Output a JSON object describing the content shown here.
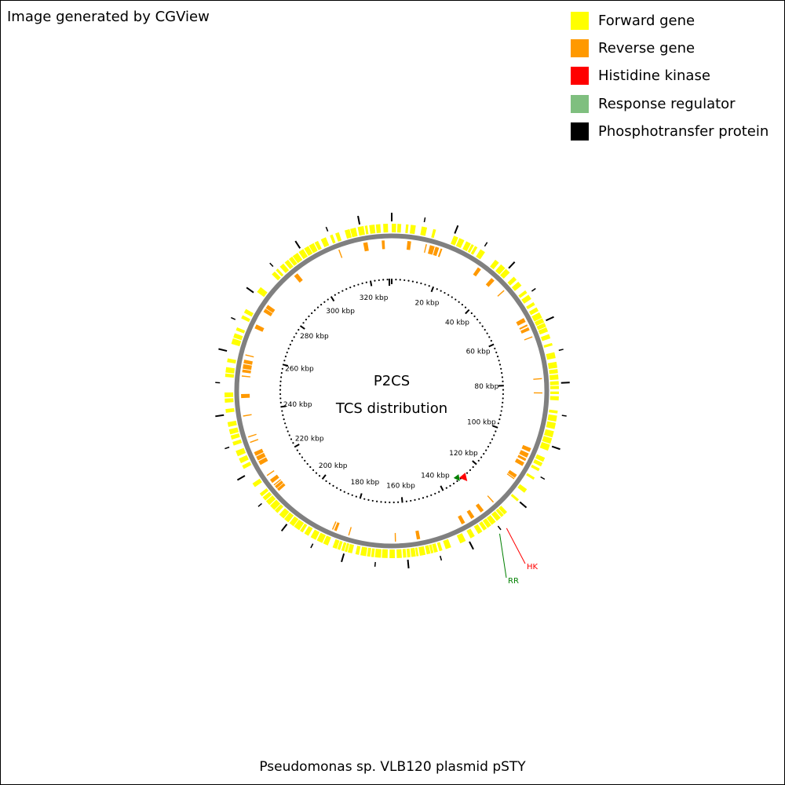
{
  "credit": "Image generated by CGView",
  "title": "Pseudomonas sp. VLB120 plasmid pSTY",
  "center_label": {
    "line1": "P2CS",
    "line2": "TCS distribution"
  },
  "legend": [
    {
      "label": "Forward gene",
      "color": "#ffff00"
    },
    {
      "label": "Reverse gene",
      "color": "#ff9900"
    },
    {
      "label": "Histidine kinase",
      "color": "#ff0000"
    },
    {
      "label": "Response regulator",
      "color": "#7fbf7f"
    },
    {
      "label": "Phosphotransfer protein",
      "color": "#000000"
    }
  ],
  "colors": {
    "forward": "#ffff00",
    "reverse": "#ff9900",
    "histidine_kinase": "#ff0000",
    "response_regulator": "#008000",
    "backbone": "#808080",
    "ticks": "#000000"
  },
  "map": {
    "sequence_length_kbp": 330,
    "tick_label_suffix": "kbp",
    "tick_labels_kbp": [
      20,
      40,
      60,
      80,
      100,
      120,
      140,
      160,
      180,
      200,
      220,
      240,
      260,
      280,
      300,
      320
    ],
    "features": [
      {
        "label": "HK",
        "type": "histidine-kinase",
        "position_kbp": 128.4
      },
      {
        "label": "RR",
        "type": "response-regulator",
        "position_kbp": 131.0
      }
    ],
    "forward_genes_kbp": [
      [
        0.0,
        1.4
      ],
      [
        1.8,
        3.0
      ],
      [
        4.5,
        5.3
      ],
      [
        6.0,
        7.6
      ],
      [
        9.5,
        11.2
      ],
      [
        13.2,
        14.1
      ],
      [
        20.0,
        21.5
      ],
      [
        21.9,
        23.6
      ],
      [
        24.3,
        25.9
      ],
      [
        26.2,
        27.0
      ],
      [
        27.4,
        28.3
      ],
      [
        29.4,
        31.1
      ],
      [
        35.1,
        36.6
      ],
      [
        37.4,
        39.2
      ],
      [
        39.5,
        41.2
      ],
      [
        43.0,
        44.3
      ],
      [
        45.1,
        46.7
      ],
      [
        48.6,
        49.6
      ],
      [
        50.3,
        51.9
      ],
      [
        53.1,
        54.1
      ],
      [
        55.0,
        56.3
      ],
      [
        56.8,
        58.7
      ],
      [
        58.9,
        60.3
      ],
      [
        60.5,
        61.8
      ],
      [
        62.0,
        63.4
      ],
      [
        64.3,
        65.7
      ],
      [
        67.2,
        68.0
      ],
      [
        70.2,
        72.1
      ],
      [
        73.3,
        75.2
      ],
      [
        75.6,
        76.9
      ],
      [
        77.3,
        78.9
      ],
      [
        79.4,
        80.6
      ],
      [
        80.9,
        81.9
      ],
      [
        82.7,
        83.5
      ],
      [
        84.2,
        85.5
      ],
      [
        88.7,
        89.6
      ],
      [
        90.3,
        92.2
      ],
      [
        92.6,
        94.6
      ],
      [
        95.3,
        97.3
      ],
      [
        97.6,
        99.4
      ],
      [
        99.7,
        101.7
      ],
      [
        104.1,
        105.5
      ],
      [
        105.9,
        107.1
      ],
      [
        107.9,
        108.8
      ],
      [
        111.1,
        111.9
      ],
      [
        115.5,
        116.9
      ],
      [
        119.6,
        120.4
      ],
      [
        125.0,
        126.2
      ],
      [
        126.4,
        127.4
      ],
      [
        127.7,
        129.3
      ],
      [
        129.7,
        131.3
      ],
      [
        131.5,
        132.9
      ],
      [
        133.2,
        134.4
      ],
      [
        134.9,
        136.4
      ],
      [
        137.7,
        139.2
      ],
      [
        140.9,
        142.8
      ],
      [
        145.9,
        147.7
      ],
      [
        148.8,
        149.8
      ],
      [
        150.3,
        151.5
      ],
      [
        151.7,
        152.5
      ],
      [
        152.7,
        153.9
      ],
      [
        154.3,
        156.1
      ],
      [
        156.5,
        157.2
      ],
      [
        157.4,
        158.8
      ],
      [
        159.1,
        160.1
      ],
      [
        160.4,
        161.4
      ],
      [
        161.8,
        163.4
      ],
      [
        164.0,
        165.7
      ],
      [
        166.3,
        168.1
      ],
      [
        168.4,
        170.3
      ],
      [
        170.6,
        171.5
      ],
      [
        171.8,
        172.8
      ],
      [
        173.1,
        174.9
      ],
      [
        175.4,
        176.5
      ],
      [
        177.6,
        179.0
      ],
      [
        179.2,
        180.0
      ],
      [
        180.2,
        181.1
      ],
      [
        181.5,
        182.4
      ],
      [
        182.6,
        184.0
      ],
      [
        185.6,
        187.2
      ],
      [
        187.5,
        189.4
      ],
      [
        189.8,
        191.6
      ],
      [
        192.4,
        193.9
      ],
      [
        194.5,
        195.5
      ],
      [
        195.8,
        197.8
      ],
      [
        198.0,
        199.6
      ],
      [
        200.0,
        201.7
      ],
      [
        201.9,
        203.8
      ],
      [
        204.5,
        205.7
      ],
      [
        205.9,
        207.8
      ],
      [
        208.1,
        209.7
      ],
      [
        210.0,
        211.3
      ],
      [
        211.7,
        212.8
      ],
      [
        215.3,
        216.7
      ],
      [
        222.0,
        223.2
      ],
      [
        224.0,
        225.6
      ],
      [
        226.4,
        228.2
      ],
      [
        230.0,
        231.2
      ],
      [
        232.0,
        233.3
      ],
      [
        233.7,
        235.3
      ],
      [
        236.1,
        237.6
      ],
      [
        240.6,
        241.8
      ],
      [
        243.8,
        245.1
      ],
      [
        245.5,
        247.0
      ],
      [
        251.9,
        253.0
      ],
      [
        253.3,
        255.0
      ],
      [
        256.6,
        257.8
      ],
      [
        262.5,
        264.3
      ],
      [
        264.6,
        266.0
      ],
      [
        267.0,
        268.0
      ],
      [
        271.1,
        272.2
      ],
      [
        273.1,
        274.4
      ],
      [
        280.8,
        282.7
      ],
      [
        288.0,
        289.3
      ],
      [
        289.8,
        290.6
      ],
      [
        291.5,
        293.0
      ],
      [
        293.5,
        294.9
      ],
      [
        295.2,
        296.5
      ],
      [
        296.7,
        298.6
      ],
      [
        299.0,
        300.7
      ],
      [
        301.0,
        302.6
      ],
      [
        302.8,
        304.5
      ],
      [
        304.8,
        306.0
      ],
      [
        307.0,
        308.7
      ],
      [
        310.1,
        311.0
      ],
      [
        311.9,
        313.1
      ],
      [
        315.0,
        316.6
      ],
      [
        316.8,
        318.6
      ],
      [
        319.2,
        321.1
      ],
      [
        321.5,
        322.3
      ],
      [
        322.9,
        324.6
      ],
      [
        325.0,
        326.4
      ],
      [
        327.3,
        328.8
      ]
    ],
    "reverse_genes_kbp": [
      [
        5.5,
        6.8
      ],
      [
        12.0,
        12.3
      ],
      [
        13.5,
        15.2
      ],
      [
        15.5,
        16.8
      ],
      [
        17.4,
        18.0
      ],
      [
        32.0,
        33.3
      ],
      [
        38.0,
        39.4
      ],
      [
        44.0,
        44.3
      ],
      [
        56.0,
        57.5
      ],
      [
        58.5,
        59.1
      ],
      [
        59.6,
        60.7
      ],
      [
        63.0,
        63.3
      ],
      [
        78.0,
        78.3
      ],
      [
        83.0,
        83.3
      ],
      [
        103.0,
        104.4
      ],
      [
        105.0,
        106.6
      ],
      [
        107.0,
        107.9
      ],
      [
        108.5,
        109.9
      ],
      [
        113.5,
        114.8
      ],
      [
        115.0,
        115.3
      ],
      [
        125.9,
        126.2
      ],
      [
        130.5,
        131.8
      ],
      [
        134.5,
        135.8
      ],
      [
        138.3,
        139.6
      ],
      [
        155.0,
        156.2
      ],
      [
        163.5,
        163.8
      ],
      [
        180.0,
        180.3
      ],
      [
        184.7,
        185.6
      ],
      [
        186.0,
        186.3
      ],
      [
        209.4,
        210.4
      ],
      [
        210.6,
        211.6
      ],
      [
        211.9,
        212.2
      ],
      [
        213.0,
        214.4
      ],
      [
        216.0,
        216.3
      ],
      [
        220.5,
        222.0
      ],
      [
        222.3,
        223.8
      ],
      [
        224.1,
        225.5
      ],
      [
        229.0,
        229.3
      ],
      [
        231.0,
        231.3
      ],
      [
        238.5,
        238.8
      ],
      [
        245.0,
        246.4
      ],
      [
        252.5,
        252.8
      ],
      [
        254.0,
        255.0
      ],
      [
        255.3,
        256.9
      ],
      [
        257.2,
        258.5
      ],
      [
        260.0,
        260.3
      ],
      [
        270.0,
        271.5
      ],
      [
        276.5,
        277.8
      ],
      [
        278.0,
        279.4
      ],
      [
        293.0,
        294.5
      ],
      [
        311.0,
        311.3
      ],
      [
        320.0,
        321.5
      ],
      [
        326.5,
        327.5
      ]
    ]
  }
}
